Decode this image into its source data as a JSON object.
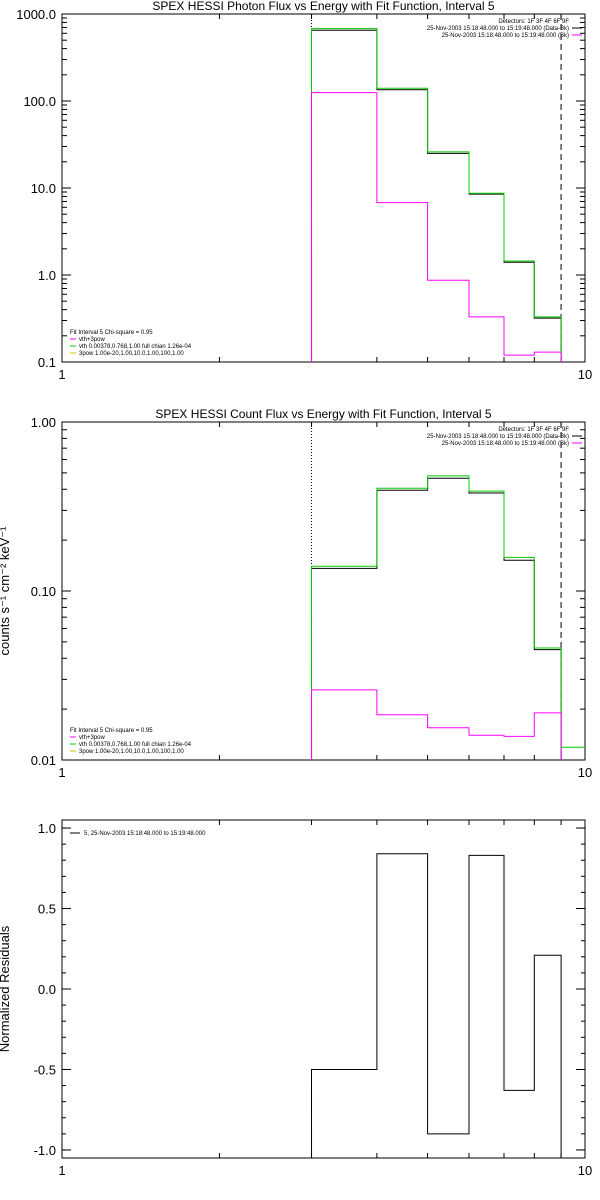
{
  "chart_data": [
    {
      "type": "line",
      "title": "SPEX HESSI Photon Flux vs Energy with Fit Function, Interval 5",
      "xscale": "log",
      "yscale": "log",
      "xlim": [
        1,
        10
      ],
      "ylim": [
        0.1,
        1000
      ],
      "xticks": [
        {
          "v": 1,
          "label": "1"
        },
        {
          "v": 10,
          "label": "10"
        }
      ],
      "yticks": [
        {
          "v": 1000,
          "label": "1000.0"
        },
        {
          "v": 100,
          "label": "100.0"
        },
        {
          "v": 10,
          "label": "10.0"
        },
        {
          "v": 1,
          "label": "1.0"
        },
        {
          "v": 0.1,
          "label": "0.1"
        }
      ],
      "ylabel": "",
      "vlines": [
        {
          "x": 3,
          "style": "dotted"
        },
        {
          "x": 9,
          "style": "dashed"
        }
      ],
      "legend_top": [
        "Detectors: 1F 3F 4F 6F 9F",
        "25-Nov-2003 15:18:48.000 to 15:19:48.000 (Data-Bk)",
        "25-Nov-2003 15:18:48.000 to 15:19:48.000 (Bk)"
      ],
      "legend_top_colors": [
        "",
        "#000000",
        "#ff00ff"
      ],
      "legend_bottom": [
        "Fit Interval 5   Chi-square = 0.95",
        "vth+3pow",
        "vth 0.00378,0.768,1.00  full chian 1.26e-04",
        "3pow 1.00e-20,1.00,10.0,1.00,100,1.00"
      ],
      "legend_bottom_colors": [
        "",
        "#ff00ff",
        "#00cc00",
        "#d4c400"
      ],
      "bin_edges": [
        3,
        4,
        5,
        6,
        7,
        8,
        9
      ],
      "series": [
        {
          "name": "Data-Bk",
          "color": "#000000",
          "values": [
            650,
            135,
            25,
            8.5,
            1.4,
            0.32
          ]
        },
        {
          "name": "vth",
          "color": "#00cc00",
          "values": [
            680,
            140,
            26,
            8.7,
            1.45,
            0.33
          ]
        },
        {
          "name": "Bk",
          "color": "#ff00ff",
          "values": [
            125,
            6.8,
            0.87,
            0.33,
            0.12,
            0.13
          ]
        }
      ]
    },
    {
      "type": "line",
      "title": "SPEX HESSI Count Flux vs Energy with Fit Function, Interval 5",
      "xscale": "log",
      "yscale": "log",
      "xlim": [
        1,
        10
      ],
      "ylim": [
        0.01,
        1
      ],
      "xticks": [
        {
          "v": 1,
          "label": "1"
        },
        {
          "v": 10,
          "label": "10"
        }
      ],
      "yticks": [
        {
          "v": 1,
          "label": "1.00"
        },
        {
          "v": 0.1,
          "label": "0.10"
        },
        {
          "v": 0.01,
          "label": "0.01"
        }
      ],
      "ylabel": "counts s⁻¹ cm⁻² keV⁻¹",
      "vlines": [
        {
          "x": 3,
          "style": "dotted"
        },
        {
          "x": 9,
          "style": "dashed"
        }
      ],
      "legend_top": [
        "Detectors: 1F 3F 4F 6F 9F",
        "25-Nov-2003 15:18:48.000 to 15:19:48.000 (Data-Bk)",
        "25-Nov-2003 15:18:48.000 to 15:19:48.000 (Bk)"
      ],
      "legend_top_colors": [
        "",
        "#000000",
        "#ff00ff"
      ],
      "legend_bottom": [
        "Fit Interval 5   Chi-square = 0.95",
        "vth+3pow",
        "vth 0.00378,0.768,1.00  full chian 1.26e-04",
        "3pow 1.00e-20,1.00,10.0,1.00,100,1.00"
      ],
      "legend_bottom_colors": [
        "",
        "#ff00ff",
        "#00cc00",
        "#d4c400"
      ],
      "bin_edges": [
        3,
        4,
        5,
        6,
        7,
        8,
        9
      ],
      "series": [
        {
          "name": "Data-Bk",
          "color": "#000000",
          "values": [
            0.136,
            0.395,
            0.465,
            0.38,
            0.152,
            0.045
          ]
        },
        {
          "name": "vth",
          "color": "#00cc00",
          "values": [
            0.14,
            0.405,
            0.48,
            0.39,
            0.158,
            0.046
          ]
        },
        {
          "name": "Bk",
          "color": "#ff00ff",
          "values": [
            0.026,
            0.0185,
            0.0155,
            0.014,
            0.0138,
            0.019
          ]
        }
      ],
      "extra_step": {
        "color": "#00cc00",
        "x": [
          9,
          10
        ],
        "y": 0.0119
      }
    },
    {
      "type": "line",
      "title": "",
      "xscale": "log",
      "yscale": "linear",
      "xlim": [
        1,
        10
      ],
      "ylim": [
        -1.05,
        1.05
      ],
      "xticks": [
        {
          "v": 1,
          "label": "1"
        },
        {
          "v": 10,
          "label": "10"
        }
      ],
      "yticks": [
        {
          "v": 1,
          "label": "1.0"
        },
        {
          "v": 0.5,
          "label": "0.5"
        },
        {
          "v": 0,
          "label": "0.0"
        },
        {
          "v": -0.5,
          "label": "-0.5"
        },
        {
          "v": -1,
          "label": "-1.0"
        }
      ],
      "ylabel": "Normalized Residuals",
      "legend_top": [
        "5, 25-Nov-2003 15:18:48.000 to 15:19:48.000"
      ],
      "bin_edges": [
        3,
        4,
        5,
        6,
        7,
        8,
        9
      ],
      "series": [
        {
          "name": "residuals",
          "color": "#000000",
          "values": [
            -0.5,
            0.84,
            -0.9,
            0.83,
            -0.63,
            0.21
          ]
        }
      ]
    }
  ]
}
